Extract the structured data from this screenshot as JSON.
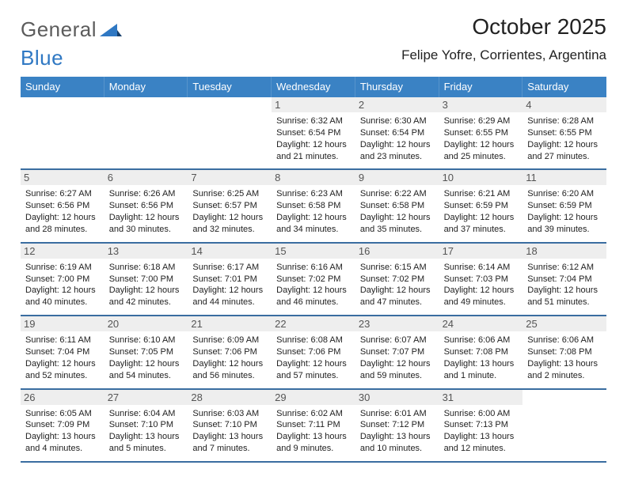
{
  "brand": {
    "part1": "General",
    "part2": "Blue"
  },
  "title": "October 2025",
  "location": "Felipe Yofre, Corrientes, Argentina",
  "colors": {
    "header_bg": "#3a82c4",
    "week_border": "#3a6da0",
    "daynum_bg": "#eeeeee",
    "text": "#222222",
    "brand_gray": "#5c5c5c",
    "brand_blue": "#2f78c3"
  },
  "weekdays": [
    "Sunday",
    "Monday",
    "Tuesday",
    "Wednesday",
    "Thursday",
    "Friday",
    "Saturday"
  ],
  "weeks": [
    [
      {
        "day": "",
        "sunrise": "",
        "sunset": "",
        "daylight1": "",
        "daylight2": "",
        "empty": true
      },
      {
        "day": "",
        "sunrise": "",
        "sunset": "",
        "daylight1": "",
        "daylight2": "",
        "empty": true
      },
      {
        "day": "",
        "sunrise": "",
        "sunset": "",
        "daylight1": "",
        "daylight2": "",
        "empty": true
      },
      {
        "day": "1",
        "sunrise": "Sunrise: 6:32 AM",
        "sunset": "Sunset: 6:54 PM",
        "daylight1": "Daylight: 12 hours",
        "daylight2": "and 21 minutes."
      },
      {
        "day": "2",
        "sunrise": "Sunrise: 6:30 AM",
        "sunset": "Sunset: 6:54 PM",
        "daylight1": "Daylight: 12 hours",
        "daylight2": "and 23 minutes."
      },
      {
        "day": "3",
        "sunrise": "Sunrise: 6:29 AM",
        "sunset": "Sunset: 6:55 PM",
        "daylight1": "Daylight: 12 hours",
        "daylight2": "and 25 minutes."
      },
      {
        "day": "4",
        "sunrise": "Sunrise: 6:28 AM",
        "sunset": "Sunset: 6:55 PM",
        "daylight1": "Daylight: 12 hours",
        "daylight2": "and 27 minutes."
      }
    ],
    [
      {
        "day": "5",
        "sunrise": "Sunrise: 6:27 AM",
        "sunset": "Sunset: 6:56 PM",
        "daylight1": "Daylight: 12 hours",
        "daylight2": "and 28 minutes."
      },
      {
        "day": "6",
        "sunrise": "Sunrise: 6:26 AM",
        "sunset": "Sunset: 6:56 PM",
        "daylight1": "Daylight: 12 hours",
        "daylight2": "and 30 minutes."
      },
      {
        "day": "7",
        "sunrise": "Sunrise: 6:25 AM",
        "sunset": "Sunset: 6:57 PM",
        "daylight1": "Daylight: 12 hours",
        "daylight2": "and 32 minutes."
      },
      {
        "day": "8",
        "sunrise": "Sunrise: 6:23 AM",
        "sunset": "Sunset: 6:58 PM",
        "daylight1": "Daylight: 12 hours",
        "daylight2": "and 34 minutes."
      },
      {
        "day": "9",
        "sunrise": "Sunrise: 6:22 AM",
        "sunset": "Sunset: 6:58 PM",
        "daylight1": "Daylight: 12 hours",
        "daylight2": "and 35 minutes."
      },
      {
        "day": "10",
        "sunrise": "Sunrise: 6:21 AM",
        "sunset": "Sunset: 6:59 PM",
        "daylight1": "Daylight: 12 hours",
        "daylight2": "and 37 minutes."
      },
      {
        "day": "11",
        "sunrise": "Sunrise: 6:20 AM",
        "sunset": "Sunset: 6:59 PM",
        "daylight1": "Daylight: 12 hours",
        "daylight2": "and 39 minutes."
      }
    ],
    [
      {
        "day": "12",
        "sunrise": "Sunrise: 6:19 AM",
        "sunset": "Sunset: 7:00 PM",
        "daylight1": "Daylight: 12 hours",
        "daylight2": "and 40 minutes."
      },
      {
        "day": "13",
        "sunrise": "Sunrise: 6:18 AM",
        "sunset": "Sunset: 7:00 PM",
        "daylight1": "Daylight: 12 hours",
        "daylight2": "and 42 minutes."
      },
      {
        "day": "14",
        "sunrise": "Sunrise: 6:17 AM",
        "sunset": "Sunset: 7:01 PM",
        "daylight1": "Daylight: 12 hours",
        "daylight2": "and 44 minutes."
      },
      {
        "day": "15",
        "sunrise": "Sunrise: 6:16 AM",
        "sunset": "Sunset: 7:02 PM",
        "daylight1": "Daylight: 12 hours",
        "daylight2": "and 46 minutes."
      },
      {
        "day": "16",
        "sunrise": "Sunrise: 6:15 AM",
        "sunset": "Sunset: 7:02 PM",
        "daylight1": "Daylight: 12 hours",
        "daylight2": "and 47 minutes."
      },
      {
        "day": "17",
        "sunrise": "Sunrise: 6:14 AM",
        "sunset": "Sunset: 7:03 PM",
        "daylight1": "Daylight: 12 hours",
        "daylight2": "and 49 minutes."
      },
      {
        "day": "18",
        "sunrise": "Sunrise: 6:12 AM",
        "sunset": "Sunset: 7:04 PM",
        "daylight1": "Daylight: 12 hours",
        "daylight2": "and 51 minutes."
      }
    ],
    [
      {
        "day": "19",
        "sunrise": "Sunrise: 6:11 AM",
        "sunset": "Sunset: 7:04 PM",
        "daylight1": "Daylight: 12 hours",
        "daylight2": "and 52 minutes."
      },
      {
        "day": "20",
        "sunrise": "Sunrise: 6:10 AM",
        "sunset": "Sunset: 7:05 PM",
        "daylight1": "Daylight: 12 hours",
        "daylight2": "and 54 minutes."
      },
      {
        "day": "21",
        "sunrise": "Sunrise: 6:09 AM",
        "sunset": "Sunset: 7:06 PM",
        "daylight1": "Daylight: 12 hours",
        "daylight2": "and 56 minutes."
      },
      {
        "day": "22",
        "sunrise": "Sunrise: 6:08 AM",
        "sunset": "Sunset: 7:06 PM",
        "daylight1": "Daylight: 12 hours",
        "daylight2": "and 57 minutes."
      },
      {
        "day": "23",
        "sunrise": "Sunrise: 6:07 AM",
        "sunset": "Sunset: 7:07 PM",
        "daylight1": "Daylight: 12 hours",
        "daylight2": "and 59 minutes."
      },
      {
        "day": "24",
        "sunrise": "Sunrise: 6:06 AM",
        "sunset": "Sunset: 7:08 PM",
        "daylight1": "Daylight: 13 hours",
        "daylight2": "and 1 minute."
      },
      {
        "day": "25",
        "sunrise": "Sunrise: 6:06 AM",
        "sunset": "Sunset: 7:08 PM",
        "daylight1": "Daylight: 13 hours",
        "daylight2": "and 2 minutes."
      }
    ],
    [
      {
        "day": "26",
        "sunrise": "Sunrise: 6:05 AM",
        "sunset": "Sunset: 7:09 PM",
        "daylight1": "Daylight: 13 hours",
        "daylight2": "and 4 minutes."
      },
      {
        "day": "27",
        "sunrise": "Sunrise: 6:04 AM",
        "sunset": "Sunset: 7:10 PM",
        "daylight1": "Daylight: 13 hours",
        "daylight2": "and 5 minutes."
      },
      {
        "day": "28",
        "sunrise": "Sunrise: 6:03 AM",
        "sunset": "Sunset: 7:10 PM",
        "daylight1": "Daylight: 13 hours",
        "daylight2": "and 7 minutes."
      },
      {
        "day": "29",
        "sunrise": "Sunrise: 6:02 AM",
        "sunset": "Sunset: 7:11 PM",
        "daylight1": "Daylight: 13 hours",
        "daylight2": "and 9 minutes."
      },
      {
        "day": "30",
        "sunrise": "Sunrise: 6:01 AM",
        "sunset": "Sunset: 7:12 PM",
        "daylight1": "Daylight: 13 hours",
        "daylight2": "and 10 minutes."
      },
      {
        "day": "31",
        "sunrise": "Sunrise: 6:00 AM",
        "sunset": "Sunset: 7:13 PM",
        "daylight1": "Daylight: 13 hours",
        "daylight2": "and 12 minutes."
      },
      {
        "day": "",
        "sunrise": "",
        "sunset": "",
        "daylight1": "",
        "daylight2": "",
        "empty": true
      }
    ]
  ]
}
